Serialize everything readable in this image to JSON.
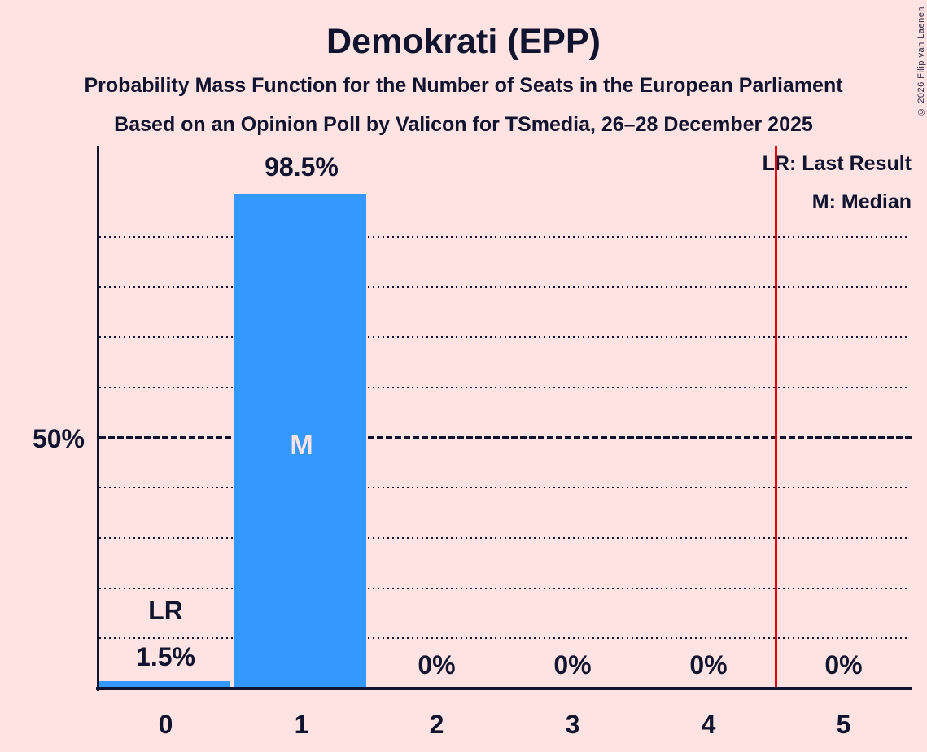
{
  "title": "Demokrati (EPP)",
  "subtitle1": "Probability Mass Function for the Number of Seats in the European Parliament",
  "subtitle2": "Based on an Opinion Poll by Valicon for TSmedia, 26–28 December 2025",
  "copyright": "© 2026 Filip van Laenen",
  "legend": {
    "last_result": "LR: Last Result",
    "median": "M: Median"
  },
  "y_axis_label": "50%",
  "annotations": {
    "last_result_label": "LR",
    "median_label": "M"
  },
  "chart_data": {
    "type": "bar",
    "title": "Demokrati (EPP)",
    "xlabel": "",
    "ylabel": "",
    "categories": [
      "0",
      "1",
      "2",
      "3",
      "4",
      "5"
    ],
    "values": [
      1.5,
      98.5,
      0,
      0,
      0,
      0
    ],
    "value_labels": [
      "1.5%",
      "98.5%",
      "0%",
      "0%",
      "0%",
      "0%"
    ],
    "ylim": [
      0,
      100
    ],
    "y_tick_labeled_pct": 50,
    "gridlines_pct": [
      10,
      20,
      30,
      40,
      60,
      70,
      80,
      90
    ],
    "solid_gridline_pct": 50,
    "median_category": "1",
    "last_result_line_x": 4.5,
    "legend_position": "top-right",
    "colors": {
      "bar": "#3399FF",
      "background": "#FFE2E2",
      "text": "#10142E",
      "last_result_line": "#E60000",
      "median_letter": "#FFE2E2"
    }
  }
}
